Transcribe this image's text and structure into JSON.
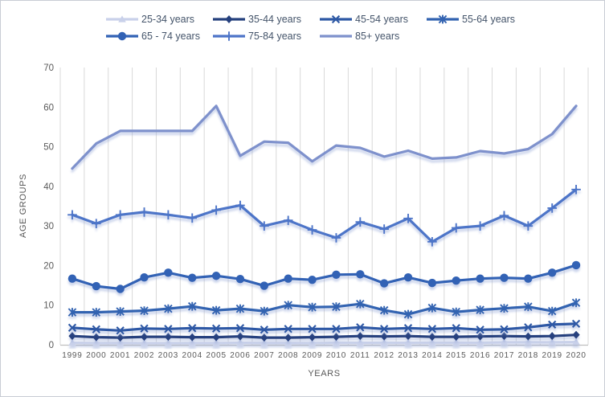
{
  "chart_data": {
    "type": "line",
    "title": "",
    "xlabel": "YEARS",
    "ylabel": "AGE GROUPS",
    "x": [
      1999,
      2000,
      2001,
      2002,
      2003,
      2004,
      2005,
      2006,
      2007,
      2008,
      2009,
      2010,
      2011,
      2012,
      2013,
      2014,
      2015,
      2016,
      2017,
      2018,
      2019,
      2020
    ],
    "ylim": [
      0,
      70
    ],
    "yticks": [
      0,
      10,
      20,
      30,
      40,
      50,
      60,
      70
    ],
    "grid": "vertical-only",
    "legend_position": "top",
    "legend_rows": [
      [
        0,
        1,
        2,
        3
      ],
      [
        4,
        5,
        6
      ]
    ],
    "series": [
      {
        "name": "25-34 years",
        "color": "#c9d1ea",
        "marker": "triangle",
        "values": [
          0.5,
          0.4,
          0.4,
          0.4,
          0.4,
          0.4,
          0.4,
          0.5,
          0.4,
          0.4,
          0.4,
          0.5,
          0.5,
          0.5,
          0.5,
          0.5,
          0.5,
          0.5,
          0.6,
          0.6,
          0.6,
          0.7
        ]
      },
      {
        "name": "35-44 years",
        "color": "#26417e",
        "marker": "diamond",
        "values": [
          2.2,
          1.9,
          1.8,
          2.0,
          2.0,
          1.9,
          1.9,
          2.1,
          1.8,
          1.8,
          1.9,
          2.0,
          2.2,
          2.1,
          2.2,
          2.0,
          2.0,
          2.1,
          2.2,
          2.1,
          2.2,
          2.5
        ]
      },
      {
        "name": "45-54 years",
        "color": "#2e59a5",
        "marker": "x",
        "values": [
          4.3,
          3.9,
          3.6,
          4.1,
          4.0,
          4.2,
          4.1,
          4.2,
          3.8,
          4.0,
          4.0,
          4.0,
          4.4,
          4.0,
          4.2,
          4.0,
          4.2,
          3.8,
          3.9,
          4.4,
          5.1,
          5.3
        ]
      },
      {
        "name": "55-64 years",
        "color": "#3363b1",
        "marker": "asterisk",
        "values": [
          8.2,
          8.2,
          8.4,
          8.6,
          9.1,
          9.7,
          8.7,
          9.1,
          8.5,
          10.0,
          9.5,
          9.6,
          10.3,
          8.7,
          7.7,
          9.3,
          8.3,
          8.8,
          9.2,
          9.6,
          8.5,
          10.6
        ]
      },
      {
        "name": "65 - 74 years",
        "color": "#3262b5",
        "marker": "circle",
        "values": [
          16.7,
          14.8,
          14.1,
          17.0,
          18.2,
          16.9,
          17.4,
          16.6,
          14.9,
          16.7,
          16.4,
          17.7,
          17.8,
          15.5,
          17.0,
          15.6,
          16.2,
          16.7,
          16.9,
          16.7,
          18.2,
          20.1
        ]
      },
      {
        "name": "75-84 years",
        "color": "#4d74c8",
        "marker": "plus",
        "values": [
          32.8,
          30.6,
          32.8,
          33.5,
          32.8,
          32.0,
          34.0,
          35.2,
          30.0,
          31.4,
          29.0,
          27.0,
          31.0,
          29.2,
          31.9,
          26.0,
          29.5,
          30.0,
          32.6,
          30.0,
          34.5,
          39.2
        ]
      },
      {
        "name": "85+ years",
        "color": "#7e91cc",
        "marker": "none",
        "values": [
          44.5,
          50.8,
          54.0,
          54.0,
          54.0,
          54.0,
          60.3,
          47.7,
          51.3,
          51.0,
          46.3,
          50.3,
          49.7,
          47.5,
          49.0,
          47.0,
          47.3,
          48.9,
          48.3,
          49.4,
          53.2,
          60.3
        ]
      }
    ],
    "style": {
      "gridline_color": "#d9d9d9",
      "axis_line_color": "#bfbfbf",
      "tick_text_color": "#595959",
      "legend_text_color": "#44546a",
      "line_shadow_color": "#93a5d6"
    }
  }
}
